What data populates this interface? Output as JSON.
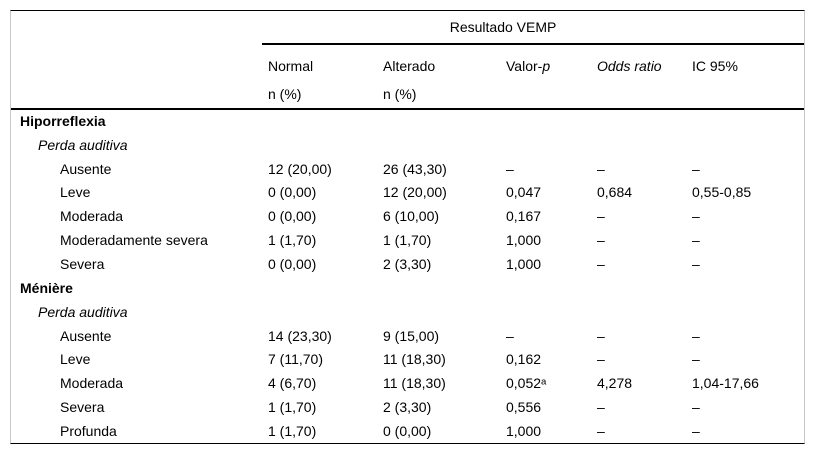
{
  "table": {
    "group_header": "Resultado VEMP",
    "col_headers": {
      "normal": {
        "line1": "Normal",
        "line2": "n (%)"
      },
      "alterado": {
        "line1": "Alterado",
        "line2": "n (%)"
      },
      "valor_p": {
        "prefix": "Valor-",
        "italic_part": "p"
      },
      "odds_ratio": "Odds ratio",
      "ic95": "IC 95%"
    },
    "rows": [
      {
        "label": "Hiporreflexia",
        "style": "section",
        "cells": [
          "",
          "",
          "",
          "",
          ""
        ]
      },
      {
        "label": "Perda auditiva",
        "style": "subsection",
        "cells": [
          "",
          "",
          "",
          "",
          ""
        ]
      },
      {
        "label": "Ausente",
        "style": "item",
        "cells": [
          "12 (20,00)",
          "26 (43,30)",
          "–",
          "–",
          "–"
        ]
      },
      {
        "label": "Leve",
        "style": "item",
        "cells": [
          "0 (0,00)",
          "12 (20,00)",
          "0,047",
          "0,684",
          "0,55-0,85"
        ]
      },
      {
        "label": "Moderada",
        "style": "item",
        "cells": [
          "0 (0,00)",
          "6 (10,00)",
          "0,167",
          "–",
          "–"
        ]
      },
      {
        "label": "Moderadamente severa",
        "style": "item",
        "cells": [
          "1 (1,70)",
          "1 (1,70)",
          "1,000",
          "–",
          "–"
        ]
      },
      {
        "label": "Severa",
        "style": "item",
        "cells": [
          "0 (0,00)",
          "2 (3,30)",
          "1,000",
          "–",
          "–"
        ]
      },
      {
        "label": "Ménière",
        "style": "section",
        "cells": [
          "",
          "",
          "",
          "",
          ""
        ]
      },
      {
        "label": "Perda auditiva",
        "style": "subsection",
        "cells": [
          "",
          "",
          "",
          "",
          ""
        ]
      },
      {
        "label": "Ausente",
        "style": "item",
        "cells": [
          "14 (23,30)",
          "9 (15,00)",
          "–",
          "–",
          "–"
        ]
      },
      {
        "label": "Leve",
        "style": "item",
        "cells": [
          "7 (11,70)",
          "11 (18,30)",
          "0,162",
          "–",
          "–"
        ]
      },
      {
        "label": "Moderada",
        "style": "item",
        "cells": [
          "4 (6,70)",
          "11 (18,30)",
          "0,052ᵃ",
          "4,278",
          "1,04-17,66"
        ]
      },
      {
        "label": "Severa",
        "style": "item",
        "cells": [
          "1 (1,70)",
          "2 (3,30)",
          "0,556",
          "–",
          "–"
        ]
      },
      {
        "label": "Profunda",
        "style": "item",
        "cells": [
          "1 (1,70)",
          "0 (0,00)",
          "1,000",
          "–",
          "–"
        ]
      }
    ]
  }
}
